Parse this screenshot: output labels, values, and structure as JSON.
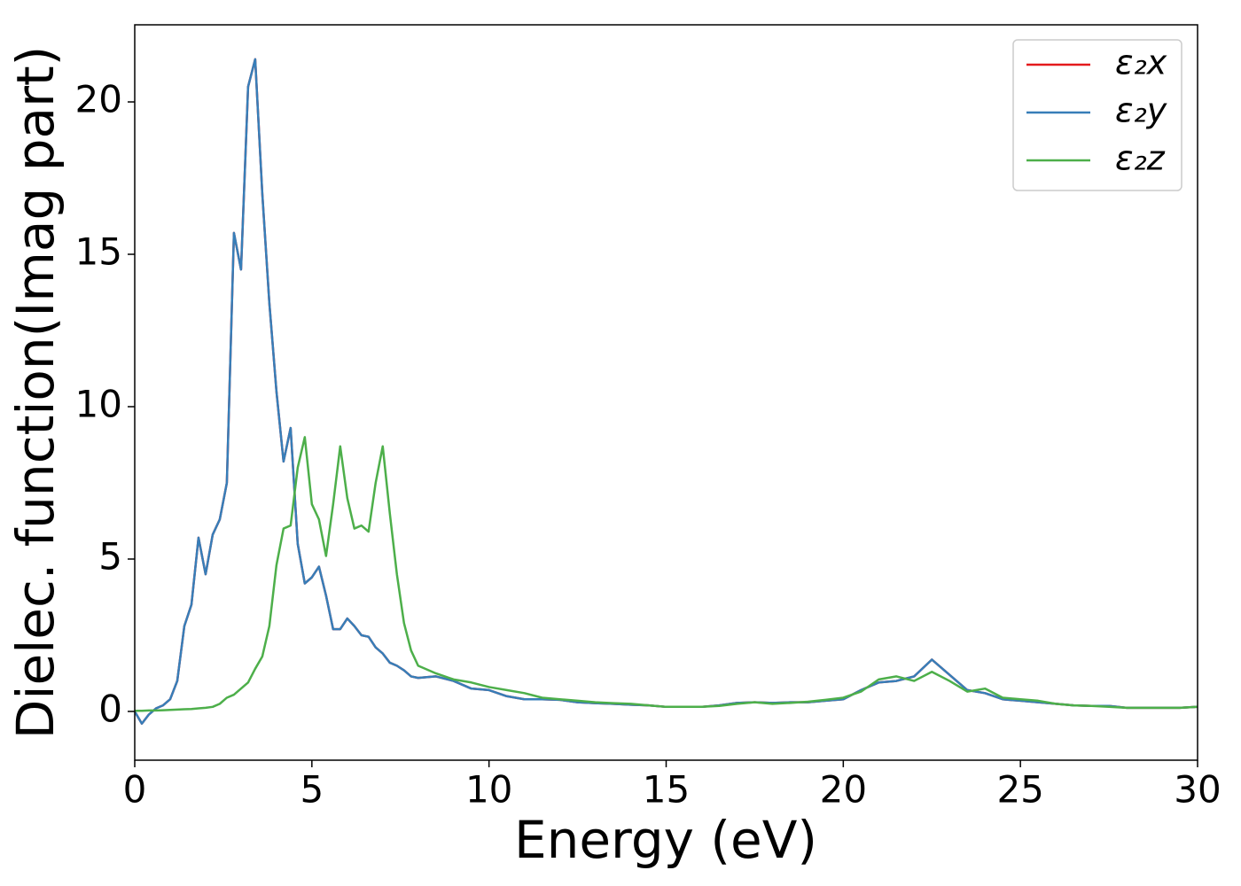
{
  "chart_data": {
    "type": "line",
    "xlabel": "Energy (eV)",
    "ylabel": "Dielec. function(Imag part)",
    "x": [
      0,
      0.2,
      0.4,
      0.6,
      0.8,
      1,
      1.2,
      1.4,
      1.6,
      1.8,
      2,
      2.2,
      2.4,
      2.6,
      2.8,
      3,
      3.2,
      3.4,
      3.6,
      3.8,
      4,
      4.2,
      4.4,
      4.6,
      4.8,
      5,
      5.2,
      5.4,
      5.6,
      5.8,
      6,
      6.2,
      6.4,
      6.6,
      6.8,
      7,
      7.2,
      7.4,
      7.6,
      7.8,
      8,
      8.5,
      9,
      9.5,
      10,
      10.5,
      11,
      11.5,
      12,
      12.5,
      13,
      13.5,
      14,
      14.5,
      15,
      15.5,
      16,
      16.5,
      17,
      17.5,
      18,
      18.5,
      19,
      19.5,
      20,
      20.5,
      21,
      21.5,
      22,
      22.5,
      23,
      23.5,
      24,
      24.5,
      25,
      25.5,
      26,
      26.5,
      27,
      27.5,
      28,
      28.5,
      29,
      29.5,
      30
    ],
    "series": [
      {
        "name": "ε₂x",
        "color": "#e41a1c",
        "values": [
          0,
          -0.4,
          -0.1,
          0.1,
          0.2,
          0.4,
          1.0,
          2.8,
          3.5,
          5.7,
          4.5,
          5.8,
          6.3,
          7.5,
          15.7,
          14.5,
          20.5,
          21.4,
          17.0,
          13.4,
          10.5,
          8.2,
          9.3,
          5.5,
          4.2,
          4.4,
          4.75,
          3.8,
          2.7,
          2.7,
          3.05,
          2.8,
          2.5,
          2.45,
          2.1,
          1.9,
          1.6,
          1.5,
          1.35,
          1.15,
          1.1,
          1.15,
          1.0,
          0.75,
          0.7,
          0.5,
          0.4,
          0.4,
          0.38,
          0.3,
          0.27,
          0.25,
          0.22,
          0.2,
          0.15,
          0.15,
          0.15,
          0.2,
          0.28,
          0.3,
          0.28,
          0.3,
          0.3,
          0.35,
          0.4,
          0.7,
          0.95,
          1.0,
          1.15,
          1.7,
          1.2,
          0.7,
          0.6,
          0.4,
          0.35,
          0.3,
          0.25,
          0.2,
          0.18,
          0.18,
          0.12,
          0.12,
          0.12,
          0.12,
          0.15
        ]
      },
      {
        "name": "ε₂y",
        "color": "#377eb8",
        "values": [
          0,
          -0.4,
          -0.1,
          0.1,
          0.2,
          0.4,
          1.0,
          2.8,
          3.5,
          5.7,
          4.5,
          5.8,
          6.3,
          7.5,
          15.7,
          14.5,
          20.5,
          21.4,
          17.0,
          13.4,
          10.5,
          8.2,
          9.3,
          5.5,
          4.2,
          4.4,
          4.75,
          3.8,
          2.7,
          2.7,
          3.05,
          2.8,
          2.5,
          2.45,
          2.1,
          1.9,
          1.6,
          1.5,
          1.35,
          1.15,
          1.1,
          1.15,
          1.0,
          0.75,
          0.7,
          0.5,
          0.4,
          0.4,
          0.38,
          0.3,
          0.27,
          0.25,
          0.22,
          0.2,
          0.15,
          0.15,
          0.15,
          0.2,
          0.28,
          0.3,
          0.28,
          0.3,
          0.3,
          0.35,
          0.4,
          0.7,
          0.95,
          1.0,
          1.15,
          1.7,
          1.2,
          0.7,
          0.6,
          0.4,
          0.35,
          0.3,
          0.25,
          0.2,
          0.18,
          0.18,
          0.12,
          0.12,
          0.12,
          0.12,
          0.15
        ]
      },
      {
        "name": "ε₂z",
        "color": "#4daf4a",
        "values": [
          0.02,
          0.02,
          0.03,
          0.03,
          0.04,
          0.05,
          0.06,
          0.07,
          0.08,
          0.1,
          0.12,
          0.15,
          0.25,
          0.45,
          0.55,
          0.75,
          0.95,
          1.4,
          1.8,
          2.8,
          4.8,
          6.0,
          6.1,
          8.0,
          9.0,
          6.8,
          6.3,
          5.1,
          6.8,
          8.7,
          7.0,
          6.0,
          6.1,
          5.9,
          7.5,
          8.7,
          6.5,
          4.5,
          2.9,
          2.0,
          1.5,
          1.25,
          1.05,
          0.95,
          0.8,
          0.7,
          0.6,
          0.45,
          0.4,
          0.35,
          0.3,
          0.27,
          0.25,
          0.2,
          0.15,
          0.15,
          0.15,
          0.18,
          0.25,
          0.3,
          0.25,
          0.28,
          0.32,
          0.38,
          0.45,
          0.65,
          1.05,
          1.15,
          1.0,
          1.3,
          1.0,
          0.65,
          0.75,
          0.45,
          0.4,
          0.35,
          0.25,
          0.2,
          0.18,
          0.15,
          0.12,
          0.12,
          0.12,
          0.12,
          0.15
        ]
      }
    ],
    "xlim": [
      0,
      30
    ],
    "xticks": [
      0,
      5,
      10,
      15,
      20,
      25,
      30
    ],
    "ylim": [
      -1.6,
      22.53
    ],
    "yticks": [
      0,
      5,
      10,
      15,
      20
    ],
    "grid": false,
    "legend": "upper right"
  }
}
